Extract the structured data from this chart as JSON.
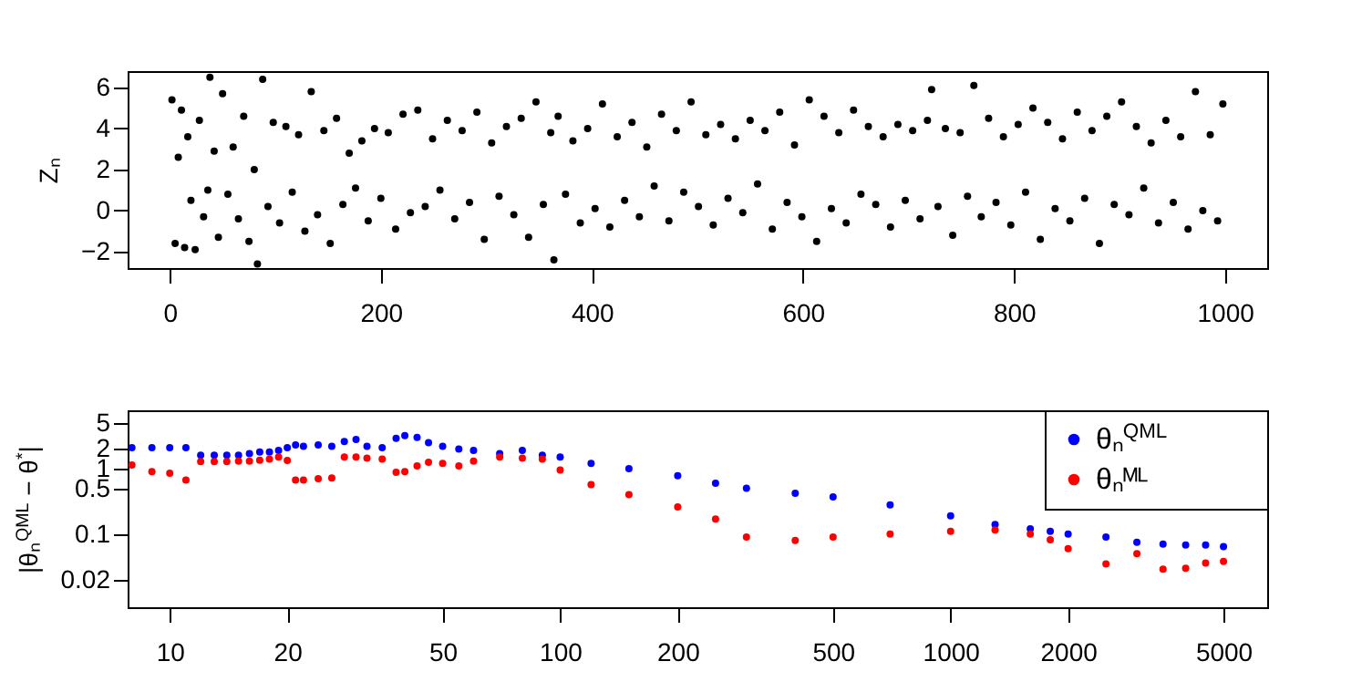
{
  "chart_data": [
    {
      "type": "scatter",
      "ylabel": "Zₙ",
      "marker": "circle",
      "xlim": [
        -40,
        1040
      ],
      "ylim": [
        -2.8,
        6.8
      ],
      "xticks": [
        0,
        200,
        400,
        600,
        800,
        1000
      ],
      "yticks": [
        -2,
        0,
        2,
        4,
        6
      ],
      "series": [
        {
          "color": "#000000",
          "x": [
            2,
            5,
            8,
            11,
            14,
            17,
            20,
            24,
            28,
            32,
            36,
            38,
            42,
            46,
            50,
            55,
            60,
            65,
            70,
            75,
            80,
            83,
            88,
            93,
            98,
            104,
            110,
            116,
            122,
            128,
            134,
            140,
            146,
            152,
            158,
            164,
            170,
            176,
            182,
            188,
            194,
            200,
            207,
            214,
            221,
            228,
            235,
            242,
            249,
            256,
            263,
            270,
            277,
            284,
            291,
            298,
            305,
            312,
            319,
            326,
            333,
            340,
            347,
            354,
            361,
            364,
            368,
            375,
            382,
            389,
            396,
            403,
            410,
            417,
            424,
            431,
            438,
            445,
            452,
            459,
            466,
            473,
            480,
            487,
            494,
            501,
            508,
            515,
            522,
            529,
            536,
            543,
            550,
            557,
            564,
            571,
            578,
            585,
            592,
            599,
            606,
            613,
            620,
            627,
            634,
            641,
            648,
            655,
            662,
            669,
            676,
            683,
            690,
            697,
            704,
            711,
            718,
            722,
            728,
            735,
            742,
            749,
            756,
            762,
            769,
            776,
            783,
            790,
            797,
            804,
            811,
            818,
            825,
            832,
            839,
            846,
            853,
            860,
            867,
            874,
            881,
            888,
            895,
            902,
            909,
            916,
            923,
            930,
            937,
            944,
            951,
            958,
            965,
            972,
            979,
            986,
            993,
            998
          ],
          "values": [
            5.4,
            -1.6,
            2.6,
            4.9,
            -1.8,
            3.6,
            0.5,
            -1.9,
            4.4,
            -0.3,
            1.0,
            6.5,
            2.9,
            -1.3,
            5.7,
            0.8,
            3.1,
            -0.4,
            4.6,
            -1.5,
            2.0,
            -2.6,
            6.4,
            0.2,
            4.3,
            -0.6,
            4.1,
            0.9,
            3.7,
            -1.0,
            5.8,
            -0.2,
            3.9,
            -1.6,
            4.5,
            0.3,
            2.8,
            1.1,
            3.4,
            -0.5,
            4.0,
            0.6,
            3.8,
            -0.9,
            4.7,
            -0.1,
            4.9,
            0.2,
            3.5,
            1.0,
            4.4,
            -0.4,
            3.9,
            0.4,
            4.8,
            -1.4,
            3.3,
            0.7,
            4.1,
            -0.2,
            4.5,
            -1.3,
            5.3,
            0.3,
            3.8,
            -2.4,
            4.6,
            0.8,
            3.4,
            -0.6,
            4.0,
            0.1,
            5.2,
            -0.8,
            3.6,
            0.5,
            4.3,
            -0.3,
            3.1,
            1.2,
            4.7,
            -0.5,
            3.9,
            0.9,
            5.3,
            0.2,
            3.7,
            -0.7,
            4.2,
            0.6,
            3.5,
            -0.1,
            4.4,
            1.3,
            3.9,
            -0.9,
            4.8,
            0.4,
            3.2,
            -0.3,
            5.4,
            -1.5,
            4.6,
            0.1,
            3.8,
            -0.6,
            4.9,
            0.8,
            4.1,
            0.3,
            3.6,
            -0.8,
            4.2,
            0.5,
            3.9,
            -0.4,
            4.4,
            5.9,
            0.2,
            4.0,
            -1.2,
            3.8,
            0.7,
            6.1,
            -0.3,
            4.5,
            0.4,
            3.6,
            -0.7,
            4.2,
            0.9,
            5.0,
            -1.4,
            4.3,
            0.1,
            3.5,
            -0.5,
            4.8,
            0.6,
            3.9,
            -1.6,
            4.6,
            0.3,
            5.3,
            -0.2,
            4.1,
            1.1,
            3.3,
            -0.6,
            4.4,
            0.4,
            3.6,
            -0.9,
            5.8,
            0.0,
            3.7,
            -0.5,
            5.2
          ]
        }
      ]
    },
    {
      "type": "scatter",
      "ylabel": "|θₙ$^{QML}$ − θ$^{*}$|",
      "marker": "circle",
      "log": "xy",
      "legend": "top right",
      "xlim": [
        7.8,
        6470
      ],
      "ylim": [
        0.0076,
        7.8
      ],
      "xticks": [
        10,
        20,
        50,
        100,
        200,
        500,
        1000,
        2000,
        5000
      ],
      "yticks": [
        0.02,
        0.1,
        0.5,
        1,
        2,
        5
      ],
      "x": [
        8,
        9,
        10,
        11,
        12,
        13,
        14,
        15,
        16,
        17,
        18,
        19,
        20,
        21,
        22,
        24,
        26,
        28,
        30,
        32,
        35,
        38,
        40,
        43,
        46,
        50,
        55,
        60,
        70,
        80,
        90,
        100,
        120,
        150,
        200,
        250,
        300,
        400,
        500,
        700,
        1000,
        1300,
        1600,
        1800,
        2000,
        2500,
        3000,
        3500,
        4000,
        4500,
        5000
      ],
      "series": [
        {
          "name": "θₙ$^{QML}$",
          "color": "#0000ff",
          "values": [
            2.1,
            2.1,
            2.1,
            2.1,
            1.6,
            1.6,
            1.6,
            1.6,
            1.7,
            1.8,
            1.8,
            1.9,
            2.1,
            2.3,
            2.2,
            2.3,
            2.2,
            2.6,
            2.8,
            2.2,
            2.1,
            2.9,
            3.2,
            3.0,
            2.5,
            2.2,
            2.0,
            1.9,
            1.7,
            1.9,
            1.6,
            1.5,
            1.2,
            1.0,
            0.78,
            0.6,
            0.5,
            0.42,
            0.37,
            0.28,
            0.19,
            0.14,
            0.12,
            0.11,
            0.1,
            0.09,
            0.075,
            0.07,
            0.068,
            0.068,
            0.064
          ]
        },
        {
          "name": "θₙᴹᴸ",
          "color": "#ff0000",
          "values": [
            1.14,
            0.9,
            0.85,
            0.67,
            1.28,
            1.28,
            1.28,
            1.3,
            1.3,
            1.35,
            1.4,
            1.5,
            1.33,
            0.67,
            0.67,
            0.7,
            0.72,
            1.5,
            1.5,
            1.45,
            1.4,
            0.88,
            0.9,
            1.1,
            1.25,
            1.2,
            1.1,
            1.3,
            1.5,
            1.45,
            1.4,
            0.95,
            0.57,
            0.4,
            0.26,
            0.17,
            0.09,
            0.08,
            0.09,
            0.1,
            0.11,
            0.115,
            0.1,
            0.082,
            0.06,
            0.035,
            0.05,
            0.029,
            0.03,
            0.036,
            0.038
          ]
        }
      ]
    }
  ]
}
